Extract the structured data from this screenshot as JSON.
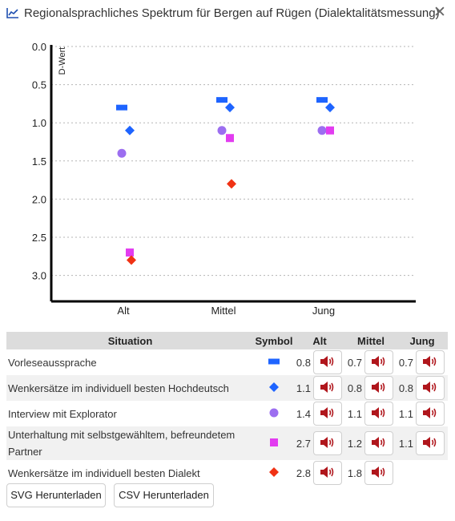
{
  "window": {
    "title": "Regionalsprachliches Spektrum für Bergen auf Rügen (Dialektalitätsmessung)",
    "close_glyph": "✕"
  },
  "chart_data": {
    "type": "scatter",
    "ylabel": "D-Wert",
    "y_inverted": true,
    "ylim": [
      0,
      3.3
    ],
    "yticks": [
      "0.0",
      "0.5",
      "1.0",
      "1.5",
      "2.0",
      "2.5",
      "3.0"
    ],
    "categories": [
      "Alt",
      "Mittel",
      "Jung"
    ],
    "grid": "horizontal dotted",
    "series": [
      {
        "name": "Vorleseaussprache",
        "marker": "bar",
        "color": "#1e64ff",
        "values": [
          0.8,
          0.7,
          0.7
        ]
      },
      {
        "name": "Wenkersätze im individuell besten Hochdeutsch",
        "marker": "diamond",
        "color": "#1e64ff",
        "values": [
          1.1,
          0.8,
          0.8
        ]
      },
      {
        "name": "Interview mit Explorator",
        "marker": "circle",
        "color": "#9c6ef0",
        "values": [
          1.4,
          1.1,
          1.1
        ]
      },
      {
        "name": "Unterhaltung mit selbstgewähltem, befreundetem Partner",
        "marker": "square",
        "color": "#e23cf0",
        "values": [
          2.7,
          1.2,
          1.1
        ]
      },
      {
        "name": "Wenkersätze im individuell besten Dialekt",
        "marker": "diamond",
        "color": "#f03214",
        "values": [
          2.8,
          1.8,
          null
        ]
      }
    ]
  },
  "table": {
    "headers": {
      "situation": "Situation",
      "symbol": "Symbol",
      "alt": "Alt",
      "mittel": "Mittel",
      "jung": "Jung"
    },
    "rows": [
      {
        "situation": "Vorleseaussprache",
        "alt": "0.8",
        "mittel": "0.7",
        "jung": "0.7"
      },
      {
        "situation": "Wenkersätze im individuell besten Hochdeutsch",
        "alt": "1.1",
        "mittel": "0.8",
        "jung": "0.8"
      },
      {
        "situation": "Interview mit Explorator",
        "alt": "1.4",
        "mittel": "1.1",
        "jung": "1.1"
      },
      {
        "situation": "Unterhaltung mit selbstgewähltem, befreundetem Partner",
        "alt": "2.7",
        "mittel": "1.2",
        "jung": "1.1"
      },
      {
        "situation": "Wenkersätze im individuell besten Dialekt",
        "alt": "2.8",
        "mittel": "1.8",
        "jung": ""
      }
    ],
    "sound_icon": "speaker-icon",
    "sound_color": "#b0161c"
  },
  "buttons": {
    "svg_download": "SVG Herunterladen",
    "csv_download": "CSV Herunterladen"
  }
}
